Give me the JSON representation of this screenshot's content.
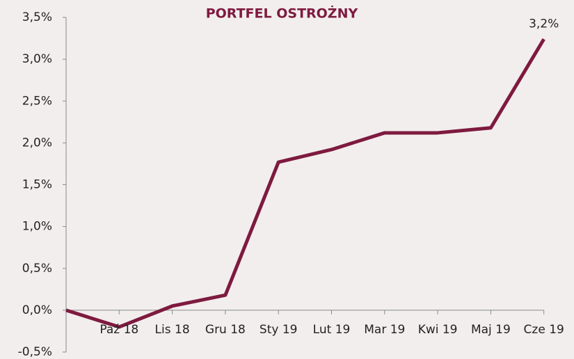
{
  "chart_data": {
    "type": "line",
    "title": "PORTFEL OSTROŻNY",
    "categories": [
      null,
      "Paź 18",
      "Lis 18",
      "Gru 18",
      "Sty 19",
      "Lut 19",
      "Mar 19",
      "Kwi 19",
      "Maj 19",
      "Cze 19"
    ],
    "series": [
      {
        "name": null,
        "color": "#7e1a3f",
        "values": [
          0,
          -0.2,
          0.05,
          0.18,
          1.77,
          1.92,
          2.12,
          2.12,
          2.18,
          3.24
        ],
        "value_labels": [
          null,
          null,
          null,
          null,
          null,
          null,
          null,
          null,
          null,
          "3,2%"
        ]
      }
    ],
    "ylim": [
      -0.5,
      3.5
    ],
    "yticks": [
      {
        "value": -0.5,
        "label": "-0,5%"
      },
      {
        "value": 0,
        "label": "0,0%"
      },
      {
        "value": 0.5,
        "label": "0,5%"
      },
      {
        "value": 1,
        "label": "1,0%"
      },
      {
        "value": 1.5,
        "label": "1,5%"
      },
      {
        "value": 2,
        "label": "2,0%"
      },
      {
        "value": 2.5,
        "label": "2,5%"
      },
      {
        "value": 3,
        "label": "3,0%"
      },
      {
        "value": 3.5,
        "label": "3,5%"
      }
    ],
    "grid": false
  }
}
